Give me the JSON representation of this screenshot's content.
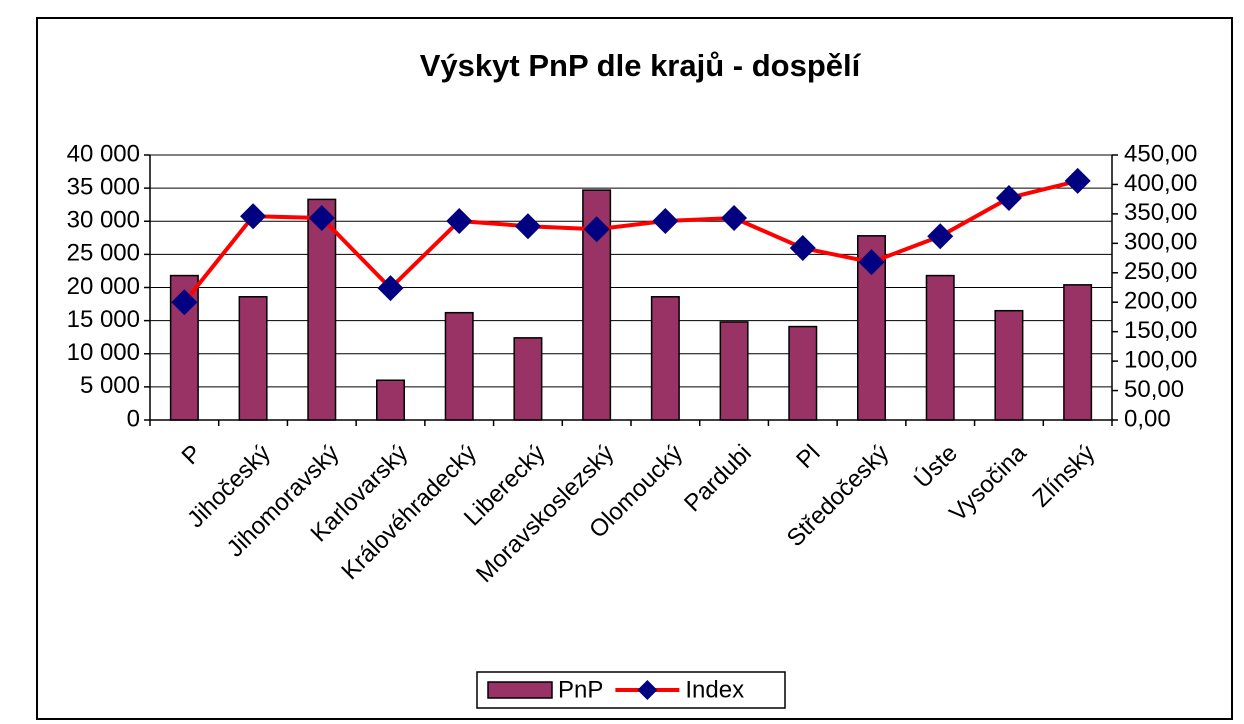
{
  "chart_data": {
    "type": "bar_line",
    "title": "Výskyt PnP dle krajů - dospělí",
    "categories": [
      "P",
      "Jihočeský",
      "Jihomoravský",
      "Karlovarský",
      "Královéhradecký",
      "Liberecký",
      "Moravskoslezský",
      "Olomoucký",
      "Pardubi",
      "Pl",
      "Středočeský",
      "Úste",
      "Vysočina",
      "Zlínský"
    ],
    "series": [
      {
        "name": "PnP",
        "type": "bar",
        "color": "#993366",
        "values": [
          21800,
          18600,
          33300,
          6000,
          16200,
          12400,
          34700,
          18600,
          14800,
          14100,
          27800,
          21800,
          16500,
          20400
        ]
      },
      {
        "name": "Index",
        "type": "line",
        "axis": "y2",
        "color": "#ff0000",
        "marker_color": "#000080",
        "values": [
          200,
          346,
          343,
          224,
          338,
          329,
          324,
          338,
          343,
          292,
          268,
          312,
          377,
          406
        ]
      }
    ],
    "ylim": [
      0,
      40000
    ],
    "yticks": [
      0,
      {
        "value": 5000,
        "label": "5 000"
      },
      {
        "value": 10000,
        "label": "10 000"
      },
      {
        "value": 15000,
        "label": "15 000"
      },
      {
        "value": 20000,
        "label": "20 000"
      },
      {
        "value": 25000,
        "label": "25 000"
      },
      {
        "value": 30000,
        "label": "30 000"
      },
      {
        "value": 35000,
        "label": "35 000"
      },
      {
        "value": 40000,
        "label": "40 000"
      }
    ],
    "y2lim": [
      0,
      450
    ],
    "y2ticks": [
      {
        "value": 0,
        "label": "0,00"
      },
      {
        "value": 50,
        "label": "50,00"
      },
      {
        "value": 100,
        "label": "100,00"
      },
      {
        "value": 150,
        "label": "150,00"
      },
      {
        "value": 200,
        "label": "200,00"
      },
      {
        "value": 250,
        "label": "250,00"
      },
      {
        "value": 300,
        "label": "300,00"
      },
      {
        "value": 350,
        "label": "350,00"
      },
      {
        "value": 400,
        "label": "400,00"
      },
      {
        "value": 450,
        "label": "450,00"
      }
    ],
    "legend": "bottom"
  }
}
